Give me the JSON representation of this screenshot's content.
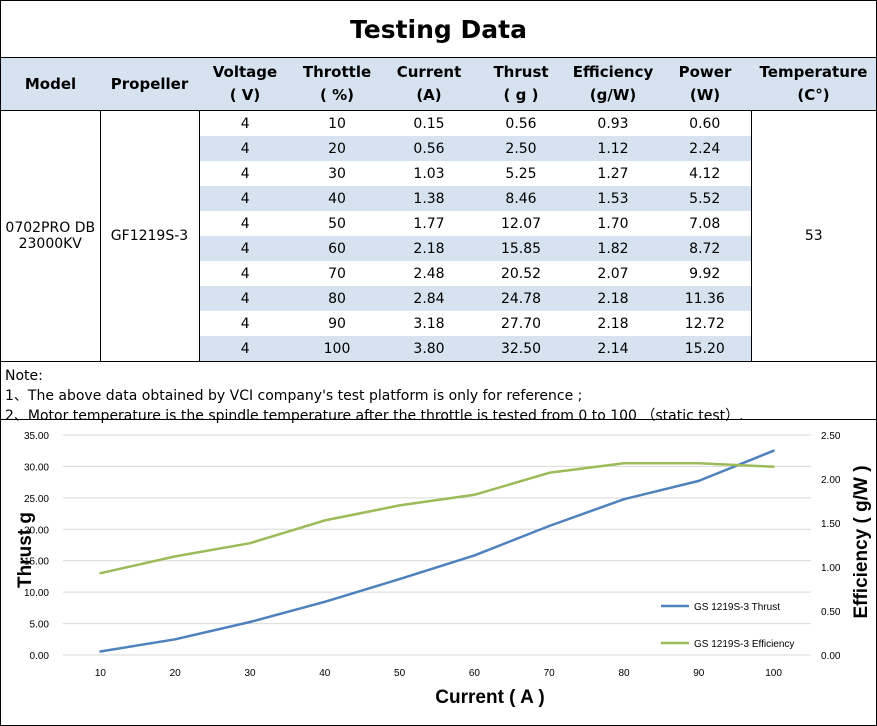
{
  "title": "Testing Data",
  "table": {
    "headers": [
      {
        "line1": "Model",
        "line2": ""
      },
      {
        "line1": "Propeller",
        "line2": ""
      },
      {
        "line1": "Voltage",
        "line2": "( V)"
      },
      {
        "line1": "Throttle",
        "line2": "( %)"
      },
      {
        "line1": "Current",
        "line2": "(A)"
      },
      {
        "line1": "Thrust",
        "line2": "( g )"
      },
      {
        "line1": "Efficiency",
        "line2": "(g/W)"
      },
      {
        "line1": "Power",
        "line2": "(W)"
      },
      {
        "line1": "Temperature",
        "line2": "(C°)"
      }
    ],
    "model": {
      "line1": "0702PRO DB",
      "line2": "23000KV"
    },
    "propeller": "GF1219S-3",
    "temperature": "53",
    "rows": [
      {
        "voltage": "4",
        "throttle": "10",
        "current": "0.15",
        "thrust": "0.56",
        "efficiency": "0.93",
        "power": "0.60"
      },
      {
        "voltage": "4",
        "throttle": "20",
        "current": "0.56",
        "thrust": "2.50",
        "efficiency": "1.12",
        "power": "2.24"
      },
      {
        "voltage": "4",
        "throttle": "30",
        "current": "1.03",
        "thrust": "5.25",
        "efficiency": "1.27",
        "power": "4.12"
      },
      {
        "voltage": "4",
        "throttle": "40",
        "current": "1.38",
        "thrust": "8.46",
        "efficiency": "1.53",
        "power": "5.52"
      },
      {
        "voltage": "4",
        "throttle": "50",
        "current": "1.77",
        "thrust": "12.07",
        "efficiency": "1.70",
        "power": "7.08"
      },
      {
        "voltage": "4",
        "throttle": "60",
        "current": "2.18",
        "thrust": "15.85",
        "efficiency": "1.82",
        "power": "8.72"
      },
      {
        "voltage": "4",
        "throttle": "70",
        "current": "2.48",
        "thrust": "20.52",
        "efficiency": "2.07",
        "power": "9.92"
      },
      {
        "voltage": "4",
        "throttle": "80",
        "current": "2.84",
        "thrust": "24.78",
        "efficiency": "2.18",
        "power": "11.36"
      },
      {
        "voltage": "4",
        "throttle": "90",
        "current": "3.18",
        "thrust": "27.70",
        "efficiency": "2.18",
        "power": "12.72"
      },
      {
        "voltage": "4",
        "throttle": "100",
        "current": "3.80",
        "thrust": "32.50",
        "efficiency": "2.14",
        "power": "15.20"
      }
    ]
  },
  "notes": {
    "heading": "Note:",
    "items": [
      "1、The above data obtained by VCI company's test platform is only for reference ;",
      "2、Motor temperature is the spindle temperature after the throttle is tested from 0 to 100 （static test）."
    ]
  },
  "colors": {
    "header_band": "#d6e2ef",
    "thrust_series": "#4f81bd",
    "efficiency_series": "#9bbb59",
    "gridline": "#d9d9d9"
  },
  "chart_data": {
    "type": "line",
    "x": [
      10,
      20,
      30,
      40,
      50,
      60,
      70,
      80,
      90,
      100
    ],
    "x_tick_labels": [
      "10",
      "20",
      "30",
      "40",
      "50",
      "60",
      "70",
      "80",
      "90",
      "100"
    ],
    "xlabel": "Current ( A )",
    "ylabel_left": "Thrust g",
    "ylabel_right": "Efficiency ( g/W )",
    "ylim_left": [
      0,
      35
    ],
    "ylim_right": [
      0,
      2.5
    ],
    "y_left_ticks": [
      "0.00",
      "5.00",
      "10.00",
      "15.00",
      "20.00",
      "25.00",
      "30.00",
      "35.00"
    ],
    "y_right_ticks": [
      "0.00",
      "0.50",
      "1.00",
      "1.50",
      "2.00",
      "2.50"
    ],
    "grid": true,
    "legend_position": "bottom-right",
    "series": [
      {
        "name": "GS 1219S-3 Thrust",
        "axis": "left",
        "values": [
          0.56,
          2.5,
          5.25,
          8.46,
          12.07,
          15.85,
          20.52,
          24.78,
          27.7,
          32.5
        ]
      },
      {
        "name": "GS 1219S-3 Efficiency",
        "axis": "right",
        "values": [
          0.93,
          1.12,
          1.27,
          1.53,
          1.7,
          1.82,
          2.07,
          2.18,
          2.18,
          2.14
        ]
      }
    ]
  }
}
